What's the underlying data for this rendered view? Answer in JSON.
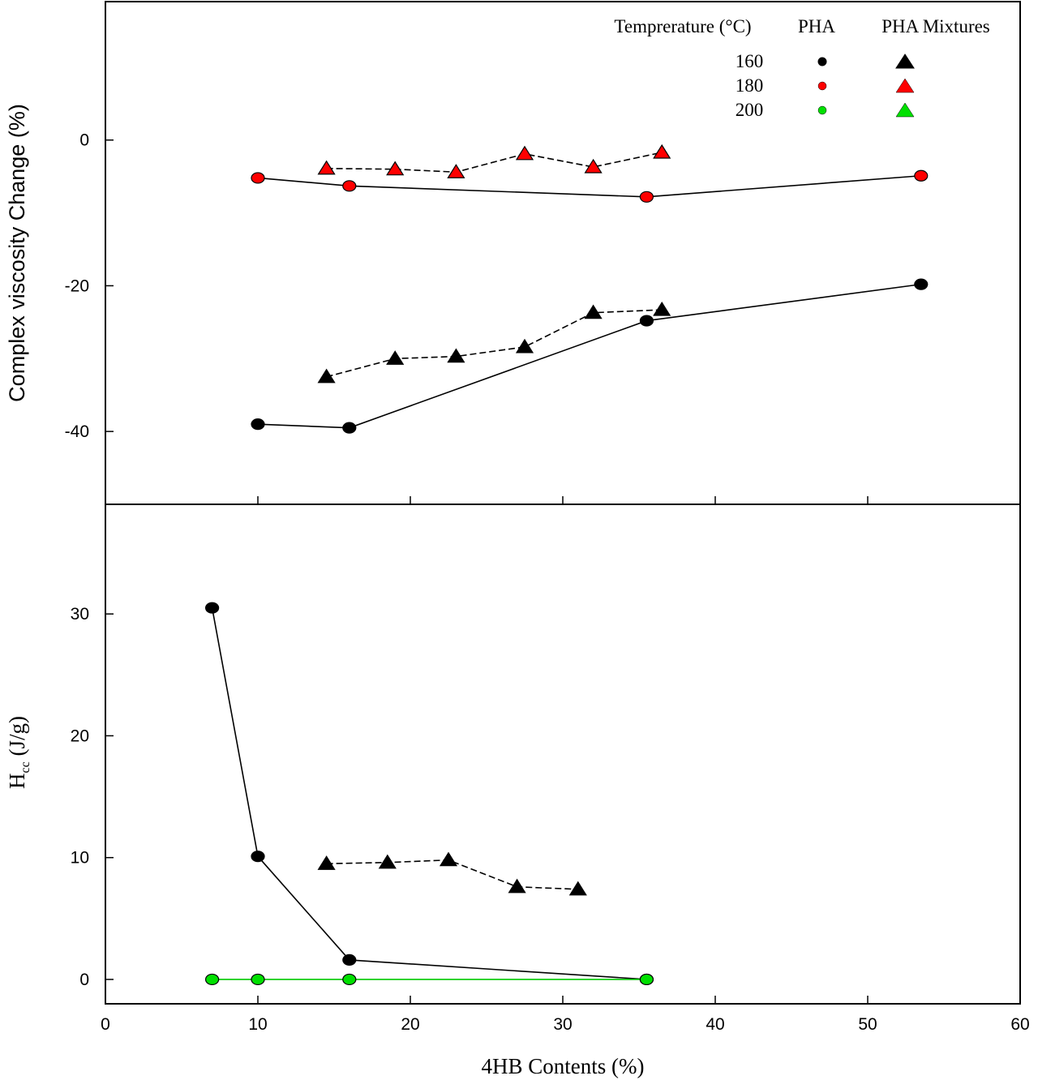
{
  "chart_data": [
    {
      "type": "line",
      "panel": "top",
      "ylabel": "Complex viscosity Change (%)",
      "ylim": [
        -50,
        19
      ],
      "yticks": [
        0,
        -20,
        -40
      ],
      "yticklabels": [
        "0",
        "-20",
        "-40"
      ],
      "xlim": [
        0,
        60
      ],
      "legend": {
        "placement": "top-right",
        "header": [
          "Temprerature (°C)",
          "PHA",
          "PHA Mixtures"
        ],
        "rows": [
          {
            "temperature": "160",
            "color": "#000000"
          },
          {
            "temperature": "180",
            "color": "#ff0000"
          },
          {
            "temperature": "200",
            "color": "#00e000"
          }
        ]
      },
      "series": [
        {
          "legend_key": "160-PHA",
          "marker": "circle",
          "line": "solid",
          "color": "#000000",
          "x": [
            10,
            16,
            35.5,
            53.5
          ],
          "y": [
            -39,
            -39.5,
            -24.8,
            -19.8
          ]
        },
        {
          "legend_key": "160-PHA-Mixtures",
          "marker": "triangle",
          "line": "dashed",
          "color": "#000000",
          "x": [
            14.5,
            19,
            23,
            27.5,
            32,
            36.5
          ],
          "y": [
            -32.5,
            -30,
            -29.7,
            -28.4,
            -23.7,
            -23.3
          ]
        },
        {
          "legend_key": "180-PHA",
          "marker": "circle",
          "line": "solid",
          "color": "#ff0000",
          "x": [
            10,
            16,
            35.5,
            53.5
          ],
          "y": [
            -5.2,
            -6.3,
            -7.8,
            -4.9
          ]
        },
        {
          "legend_key": "180-PHA-Mixtures",
          "marker": "triangle",
          "line": "dashed",
          "color": "#ff0000",
          "x": [
            14.5,
            19,
            23,
            27.5,
            32,
            36.5
          ],
          "y": [
            -3.9,
            -4.0,
            -4.4,
            -1.9,
            -3.7,
            -1.7
          ]
        }
      ]
    },
    {
      "type": "line",
      "panel": "bottom",
      "ylabel_main": "H",
      "ylabel_sub": "cc",
      "ylabel_unit": " (J/g)",
      "ylim": [
        -2,
        39
      ],
      "yticks": [
        0,
        10,
        20,
        30
      ],
      "yticklabels": [
        "0",
        "10",
        "20",
        "30"
      ],
      "xlabel": "4HB Contents (%)",
      "xlim": [
        0,
        60
      ],
      "xticks": [
        0,
        10,
        20,
        30,
        40,
        50,
        60
      ],
      "xticklabels": [
        "0",
        "10",
        "20",
        "30",
        "40",
        "50",
        "60"
      ],
      "series": [
        {
          "legend_key": "160-PHA",
          "marker": "circle",
          "line": "solid",
          "color": "#000000",
          "x": [
            7,
            10,
            16,
            35.5
          ],
          "y": [
            30.5,
            10.1,
            1.6,
            0
          ]
        },
        {
          "legend_key": "160-PHA-Mixtures",
          "marker": "triangle",
          "line": "dashed",
          "color": "#000000",
          "x": [
            14.5,
            18.5,
            22.5,
            27,
            31
          ],
          "y": [
            9.5,
            9.6,
            9.8,
            7.6,
            7.4
          ]
        },
        {
          "legend_key": "200-PHA",
          "marker": "circle",
          "line": "solid",
          "color": "#00e000",
          "x": [
            7,
            10,
            16,
            35.5
          ],
          "y": [
            0,
            0,
            0,
            0
          ]
        }
      ]
    }
  ]
}
